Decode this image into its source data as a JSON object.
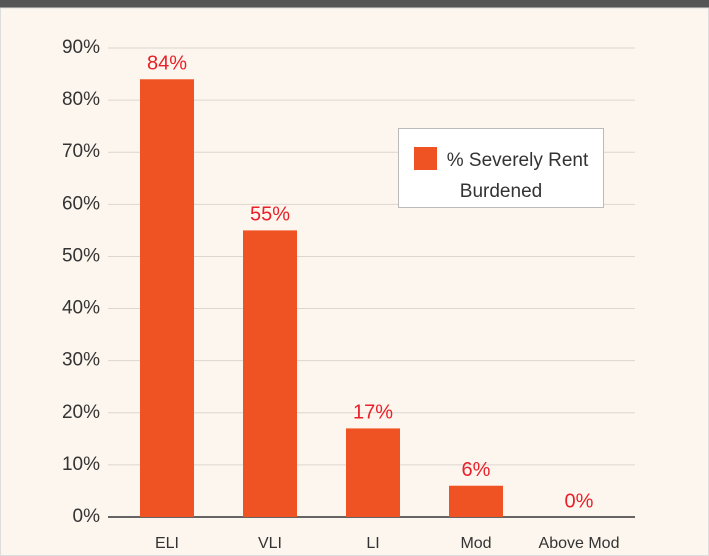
{
  "chart_data": {
    "type": "bar",
    "categories": [
      "ELI",
      "VLI",
      "LI",
      "Mod",
      "Above Mod"
    ],
    "series": [
      {
        "name": "% Severely Rent Burdened",
        "color": "#f05323",
        "values": [
          84,
          55,
          17,
          6,
          0
        ],
        "value_labels": [
          "84%",
          "55%",
          "17%",
          "6%",
          "0%"
        ]
      }
    ],
    "ylim": [
      0,
      90
    ],
    "yticks": [
      {
        "value": 0,
        "label": "0%"
      },
      {
        "value": 10,
        "label": "10%"
      },
      {
        "value": 20,
        "label": "20%"
      },
      {
        "value": 30,
        "label": "30%"
      },
      {
        "value": 40,
        "label": "40%"
      },
      {
        "value": 50,
        "label": "50%"
      },
      {
        "value": 60,
        "label": "60%"
      },
      {
        "value": 70,
        "label": "70%"
      },
      {
        "value": 80,
        "label": "80%"
      },
      {
        "value": 90,
        "label": "90%"
      }
    ],
    "grid": true,
    "legend": "upper right"
  }
}
